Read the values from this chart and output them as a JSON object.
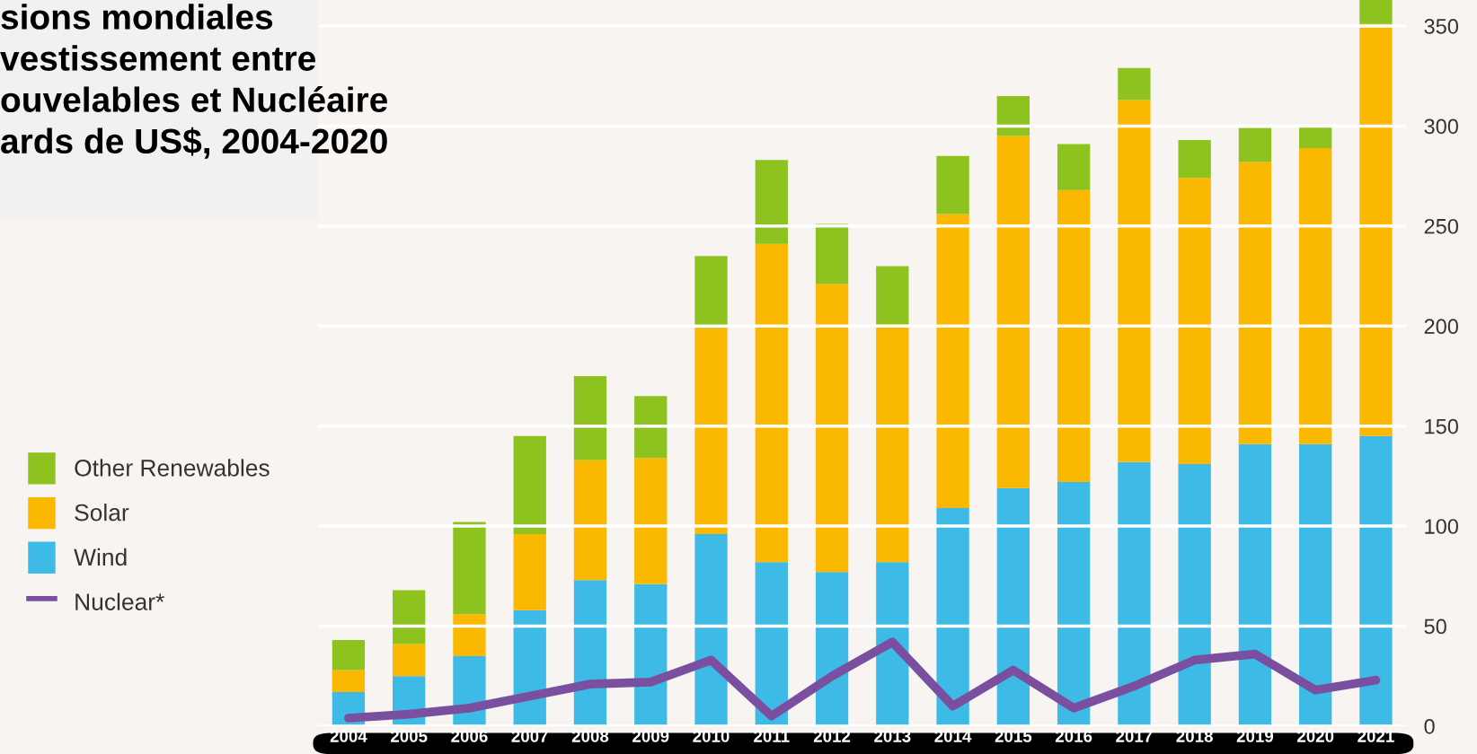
{
  "chart_data": {
    "type": "bar",
    "stacked": true,
    "title": "sions mondiales\nvestissement entre\nouvelables et Nucléaire\nards de US$, 2004-2020",
    "categories": [
      "2004",
      "2005",
      "2006",
      "2007",
      "2008",
      "2009",
      "2010",
      "2011",
      "2012",
      "2013",
      "2014",
      "2015",
      "2016",
      "2017",
      "2018",
      "2019",
      "2020",
      "2021"
    ],
    "series": [
      {
        "name": "Wind",
        "color": "#3dbbe6",
        "values": [
          17,
          25,
          35,
          58,
          73,
          71,
          96,
          82,
          77,
          82,
          109,
          119,
          122,
          132,
          131,
          141,
          141,
          145
        ]
      },
      {
        "name": "Solar",
        "color": "#fbb800",
        "values": [
          11,
          16,
          21,
          38,
          60,
          63,
          103,
          159,
          144,
          119,
          147,
          176,
          146,
          181,
          143,
          141,
          148,
          206
        ]
      },
      {
        "name": "Other Renewables",
        "color": "#8dc21f",
        "values": [
          15,
          27,
          46,
          49,
          42,
          31,
          36,
          42,
          30,
          29,
          29,
          20,
          23,
          16,
          19,
          17,
          11,
          12
        ]
      },
      {
        "name": "Nuclear*",
        "type": "line",
        "color": "#7b4fa0",
        "values": [
          4,
          6,
          9,
          15,
          21,
          22,
          33,
          5,
          25,
          42,
          10,
          28,
          9,
          20,
          33,
          36,
          18,
          23
        ]
      }
    ],
    "ylim": [
      0,
      363
    ],
    "yticks": [
      0,
      50,
      100,
      150,
      200,
      250,
      300,
      350
    ],
    "grid": "y",
    "legend": "left"
  }
}
